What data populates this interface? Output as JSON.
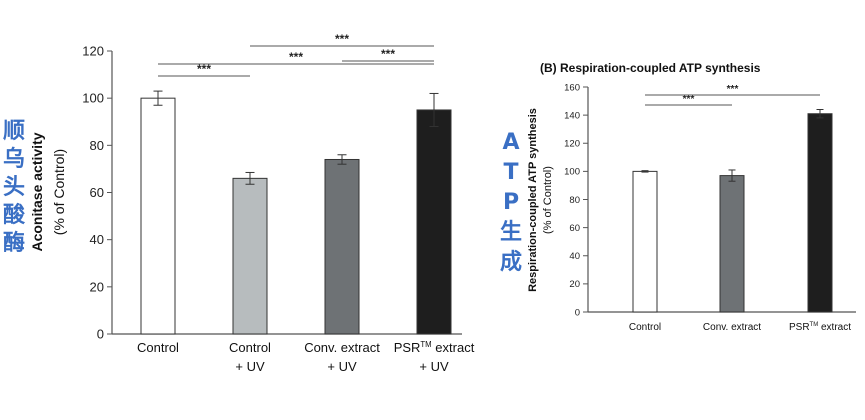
{
  "cjk_labels": {
    "left": [
      "顺",
      "乌",
      "头",
      "酸",
      "酶"
    ],
    "right": [
      "A",
      "T",
      "P",
      "生",
      "成"
    ]
  },
  "chart_data": [
    {
      "type": "bar",
      "title": "",
      "ylabel_lines": [
        "Aconitase activity",
        "(% of Control)"
      ],
      "xlabel": "",
      "ylim": [
        0,
        120
      ],
      "yticks": [
        0,
        20,
        40,
        60,
        80,
        100,
        120
      ],
      "grid": false,
      "categories": [
        [
          "Control"
        ],
        [
          "Control",
          "+ UV"
        ],
        [
          "Conv. extract",
          "+ UV"
        ],
        [
          "PSR",
          "TM",
          " extract",
          "+ UV"
        ]
      ],
      "values": [
        100,
        66,
        74,
        95
      ],
      "errors": [
        3,
        2.5,
        2,
        7
      ],
      "colors": [
        "#ffffff",
        "#b7bcbe",
        "#6e7275",
        "#1e1e1e"
      ],
      "significance": [
        {
          "from": 0,
          "to": 1,
          "label": "***"
        },
        {
          "from": 0,
          "to": 3,
          "label": "***"
        },
        {
          "from": 1,
          "to": 3,
          "label": "***"
        },
        {
          "from": 2,
          "to": 3,
          "label": "***"
        }
      ]
    },
    {
      "type": "bar",
      "title": "(B) Respiration-coupled ATP synthesis",
      "ylabel_lines": [
        "Respiration-coupled ATP synthesis",
        "(% of Control)"
      ],
      "xlabel": "",
      "ylim": [
        0,
        160
      ],
      "yticks": [
        0,
        20,
        40,
        60,
        80,
        100,
        120,
        140,
        160
      ],
      "grid": false,
      "categories": [
        [
          "Control"
        ],
        [
          "Conv. extract"
        ],
        [
          "PSR",
          "TM",
          " extract"
        ]
      ],
      "values": [
        100,
        97,
        141
      ],
      "errors": [
        0.5,
        4,
        3
      ],
      "colors": [
        "#ffffff",
        "#6e7275",
        "#1e1e1e"
      ],
      "significance": [
        {
          "from": 0,
          "to": 1,
          "label": "***"
        },
        {
          "from": 0,
          "to": 2,
          "label": "***"
        }
      ]
    }
  ]
}
